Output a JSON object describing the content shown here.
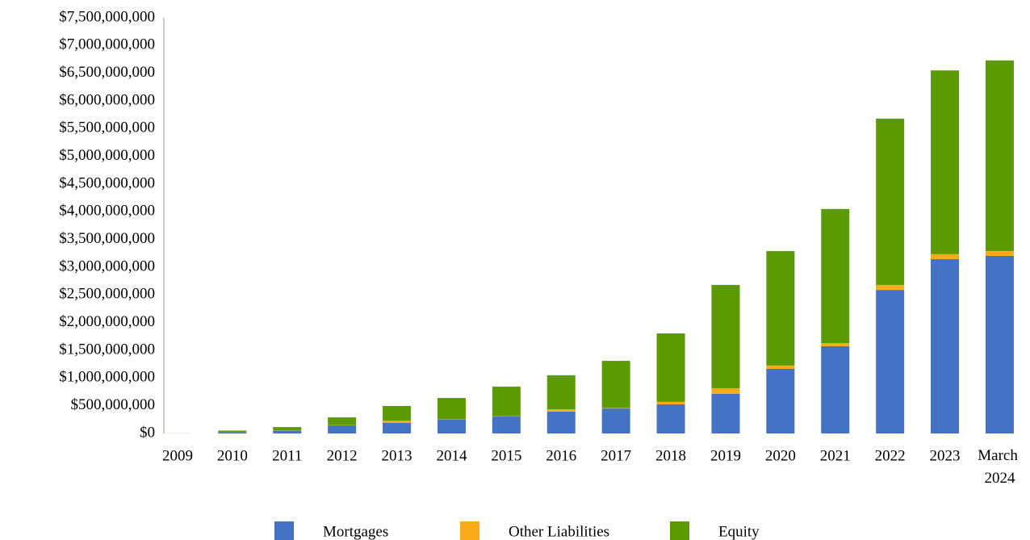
{
  "chart_data": {
    "type": "stacked_bar",
    "categories": [
      "2009",
      "2010",
      "2011",
      "2012",
      "2013",
      "2014",
      "2015",
      "2016",
      "2017",
      "2018",
      "2019",
      "2020",
      "2021",
      "2022",
      "2023",
      "March 2024"
    ],
    "series": [
      {
        "name": "Mortgages",
        "color": "#4472c4",
        "values": [
          0,
          15000000,
          50000000,
          145000000,
          190000000,
          250000000,
          305000000,
          395000000,
          450000000,
          525000000,
          715000000,
          1165000000,
          1575000000,
          2590000000,
          3145000000,
          3205000000
        ]
      },
      {
        "name": "Other Liabilities",
        "color": "#fbab18",
        "values": [
          0,
          2000000,
          5000000,
          5000000,
          40000000,
          5000000,
          5000000,
          40000000,
          10000000,
          45000000,
          100000000,
          60000000,
          55000000,
          90000000,
          90000000,
          85000000
        ]
      },
      {
        "name": "Equity",
        "color": "#5b9a00",
        "values": [
          2000000,
          35000000,
          60000000,
          140000000,
          265000000,
          385000000,
          535000000,
          615000000,
          850000000,
          1235000000,
          1865000000,
          2065000000,
          2420000000,
          3000000000,
          3315000000,
          3440000000
        ]
      }
    ],
    "ylim": [
      0,
      7500000000
    ],
    "yticks": [
      {
        "value": 0,
        "label": "$0"
      },
      {
        "value": 500000000,
        "label": "$500,000,000"
      },
      {
        "value": 1000000000,
        "label": "$1,000,000,000"
      },
      {
        "value": 1500000000,
        "label": "$1,500,000,000"
      },
      {
        "value": 2000000000,
        "label": "$2,000,000,000"
      },
      {
        "value": 2500000000,
        "label": "$2,500,000,000"
      },
      {
        "value": 3000000000,
        "label": "$3,000,000,000"
      },
      {
        "value": 3500000000,
        "label": "$3,500,000,000"
      },
      {
        "value": 4000000000,
        "label": "$4,000,000,000"
      },
      {
        "value": 4500000000,
        "label": "$4,500,000,000"
      },
      {
        "value": 5000000000,
        "label": "$5,000,000,000"
      },
      {
        "value": 5500000000,
        "label": "$5,500,000,000"
      },
      {
        "value": 6000000000,
        "label": "$6,000,000,000"
      },
      {
        "value": 6500000000,
        "label": "$6,500,000,000"
      },
      {
        "value": 7000000000,
        "label": "$7,000,000,000"
      },
      {
        "value": 7500000000,
        "label": "$7,500,000,000"
      }
    ],
    "grid": false,
    "legend": "bottom"
  }
}
